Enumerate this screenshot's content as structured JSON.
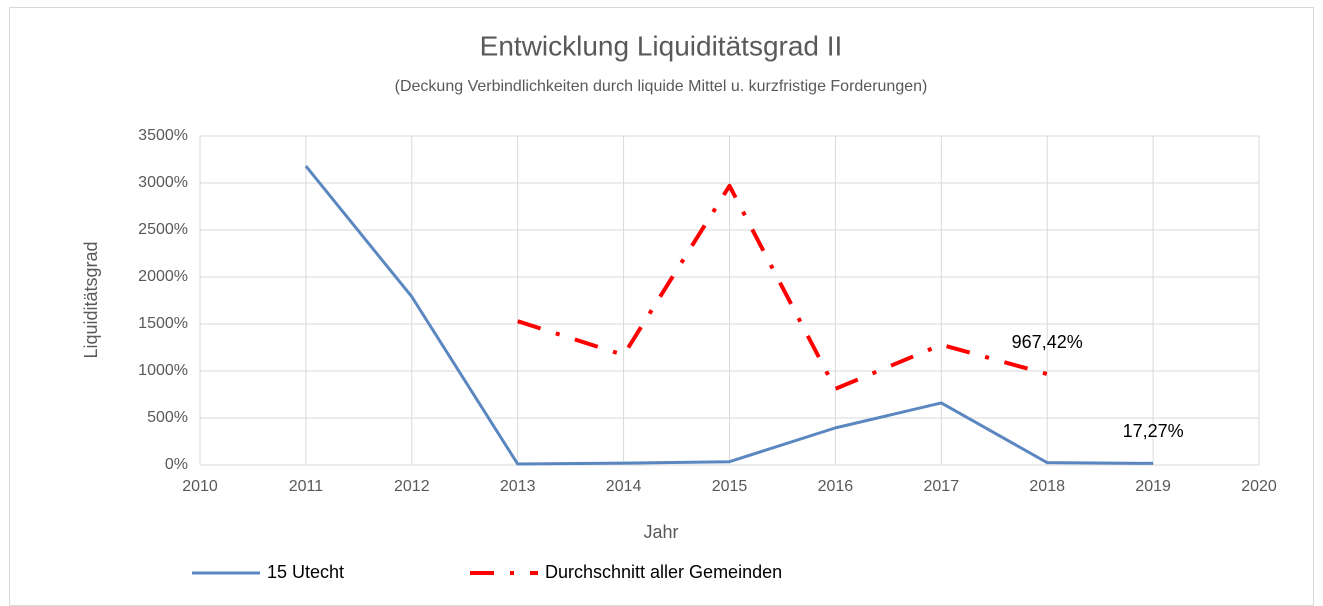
{
  "chart_data": {
    "type": "line",
    "title": "Entwicklung Liquiditätsgrad II",
    "subtitle": "(Deckung Verbindlichkeiten durch liquide Mittel u. kurzfristige Forderungen)",
    "x_label": "Jahr",
    "y_label": "Liquiditätsgrad",
    "x": [
      2011,
      2012,
      2013,
      2014,
      2015,
      2016,
      2017,
      2018,
      2019
    ],
    "series": [
      {
        "name": "15 Utecht",
        "color": "#5b87c0",
        "style": "solid",
        "values": [
          3180,
          1790,
          10,
          20,
          35,
          395,
          660,
          25,
          17.27
        ],
        "value_labels": [
          null,
          null,
          null,
          null,
          null,
          null,
          null,
          null,
          "17,27%"
        ]
      },
      {
        "name": "Durchschnitt aller Gemeinden",
        "color": "#ff0000",
        "style": "dashdot",
        "values": [
          null,
          null,
          1530,
          1170,
          2970,
          810,
          1280,
          967.42,
          null
        ],
        "value_labels": [
          null,
          null,
          null,
          null,
          null,
          null,
          null,
          "967,42%",
          null
        ]
      }
    ],
    "xlim": [
      2010,
      2020
    ],
    "xticks": [
      2010,
      2011,
      2012,
      2013,
      2014,
      2015,
      2016,
      2017,
      2018,
      2019,
      2020
    ],
    "ylim": [
      0,
      3500
    ],
    "yticks": [
      {
        "value": 0,
        "label": "0%"
      },
      {
        "value": 500,
        "label": "500%"
      },
      {
        "value": 1000,
        "label": "1000%"
      },
      {
        "value": 1500,
        "label": "1500%"
      },
      {
        "value": 2000,
        "label": "2000%"
      },
      {
        "value": 2500,
        "label": "2500%"
      },
      {
        "value": 3000,
        "label": "3000%"
      },
      {
        "value": 3500,
        "label": "3500%"
      }
    ],
    "grid": true,
    "legend": "bottom"
  }
}
